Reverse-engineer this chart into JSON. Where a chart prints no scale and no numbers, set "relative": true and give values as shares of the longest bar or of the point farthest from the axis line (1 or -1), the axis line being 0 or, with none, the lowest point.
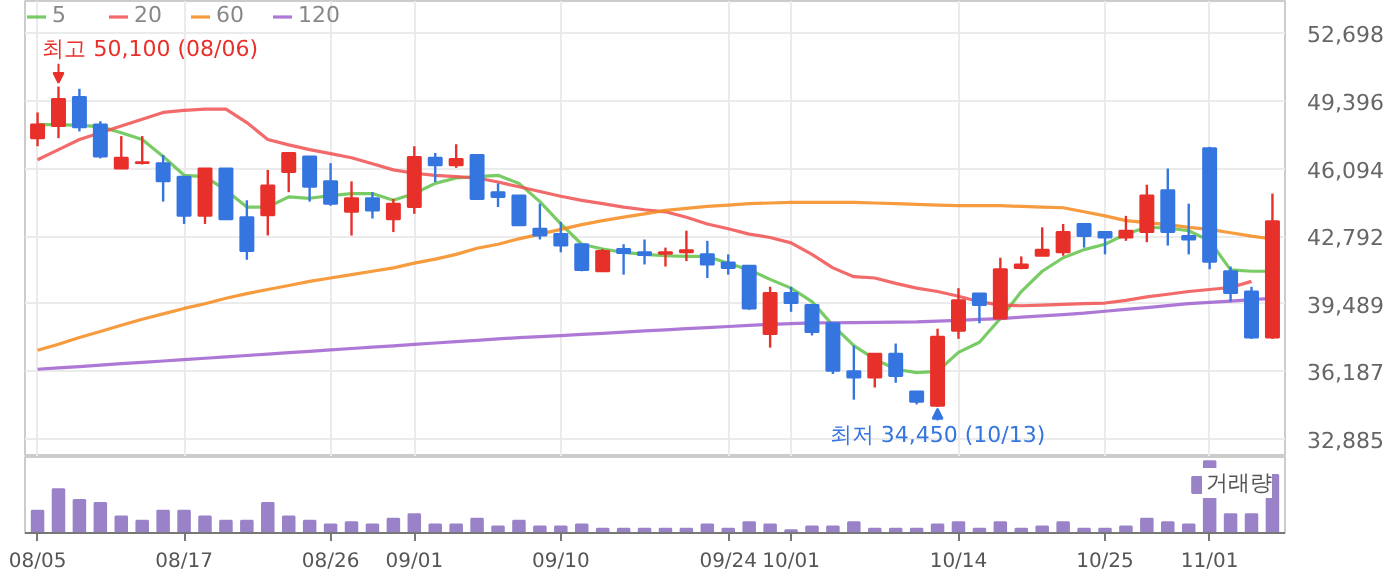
{
  "chart_data": [
    {
      "type": "candlestick",
      "categories": [
        null,
        null,
        null,
        null,
        null,
        null,
        null,
        null,
        null,
        null,
        null,
        null,
        null,
        null,
        null,
        null,
        null,
        null,
        null,
        null,
        null,
        null,
        null,
        null,
        null,
        null,
        null,
        null,
        null,
        null,
        null,
        null,
        null,
        null,
        null,
        null,
        null,
        null,
        null,
        null,
        null,
        null,
        null,
        null,
        null,
        null,
        null,
        null,
        null,
        null,
        null,
        null,
        null,
        null,
        null,
        null,
        null,
        null,
        null,
        null
      ],
      "ohlc": [
        [
          47580,
          48835,
          47184,
          48240
        ],
        [
          48174,
          50100,
          47580,
          49495
        ],
        [
          49594,
          49990,
          47910,
          48108
        ],
        [
          48240,
          48405,
          46590,
          46688
        ],
        [
          46094,
          47679,
          46094,
          46622
        ],
        [
          46360,
          47679,
          46292,
          46400
        ],
        [
          46358,
          46754,
          44476,
          45467
        ],
        [
          45698,
          45698,
          43387,
          43783
        ],
        [
          43783,
          46094,
          43387,
          46094
        ],
        [
          46094,
          46094,
          43618,
          43618
        ],
        [
          43717,
          44542,
          41637,
          42066
        ],
        [
          43816,
          46028,
          42825,
          45268
        ],
        [
          45929,
          46853,
          44938,
          46853
        ],
        [
          46688,
          46688,
          44476,
          45202
        ],
        [
          45467,
          46358,
          44278,
          44377
        ],
        [
          43981,
          45467,
          42820,
          44641
        ],
        [
          44641,
          44938,
          43651,
          44047
        ],
        [
          43618,
          44608,
          42990,
          44377
        ],
        [
          44212,
          47184,
          43882,
          46655
        ],
        [
          46622,
          46853,
          45434,
          46259
        ],
        [
          46259,
          47283,
          46127,
          46556
        ],
        [
          46754,
          46754,
          44608,
          44608
        ],
        [
          44938,
          45368,
          44212,
          44707
        ],
        [
          44773,
          44773,
          43321,
          43321
        ],
        [
          43156,
          44377,
          42627,
          42825
        ],
        [
          42891,
          43486,
          41999,
          42330
        ],
        [
          42396,
          42396,
          41075,
          41141
        ],
        [
          41075,
          42165,
          41075,
          42066
        ],
        [
          42165,
          42396,
          40910,
          41967
        ],
        [
          42000,
          42627,
          41406,
          41868
        ],
        [
          41934,
          42231,
          41306,
          42000
        ],
        [
          42000,
          43056,
          41571,
          42099
        ],
        [
          41901,
          42561,
          40745,
          41405
        ],
        [
          41504,
          41901,
          40910,
          41240
        ],
        [
          41339,
          41339,
          39193,
          39259
        ],
        [
          38005,
          40316,
          37344,
          40019
        ],
        [
          40019,
          40316,
          39094,
          39523
        ],
        [
          39424,
          39424,
          37939,
          38103
        ],
        [
          38532,
          38532,
          36055,
          36220
        ],
        [
          36187,
          37443,
          34801,
          35890
        ],
        [
          35890,
          37047,
          35395,
          37047
        ],
        [
          37047,
          37542,
          35626,
          35956
        ],
        [
          35197,
          35197,
          34570,
          34702
        ],
        [
          34500,
          38268,
          34450,
          37872
        ],
        [
          38169,
          40250,
          37773,
          39655
        ],
        [
          39985,
          39985,
          38532,
          39424
        ],
        [
          38763,
          41736,
          38763,
          41174
        ],
        [
          41240,
          41802,
          41174,
          41405
        ],
        [
          41835,
          43222,
          41835,
          42132
        ],
        [
          42000,
          43387,
          41835,
          42990
        ],
        [
          43387,
          43387,
          42231,
          42792
        ],
        [
          42990,
          42990,
          41901,
          42726
        ],
        [
          42726,
          43783,
          42561,
          43056
        ],
        [
          42990,
          45301,
          42495,
          44773
        ],
        [
          45037,
          46094,
          42330,
          42990
        ],
        [
          42792,
          44377,
          41901,
          42627
        ],
        [
          47085,
          47151,
          41174,
          41538
        ],
        [
          41075,
          41306,
          39589,
          40019
        ],
        [
          40085,
          40316,
          37773,
          37840
        ],
        [
          37840,
          44872,
          37773,
          43519
        ]
      ],
      "colors": [
        "#e8302a",
        "#e8302a",
        "#3575e0",
        "#3575e0",
        "#e8302a",
        "#e8302a",
        "#3575e0",
        "#3575e0",
        "#e8302a",
        "#3575e0",
        "#3575e0",
        "#e8302a",
        "#e8302a",
        "#3575e0",
        "#3575e0",
        "#e8302a",
        "#3575e0",
        "#e8302a",
        "#e8302a",
        "#3575e0",
        "#e8302a",
        "#3575e0",
        "#3575e0",
        "#3575e0",
        "#3575e0",
        "#3575e0",
        "#3575e0",
        "#e8302a",
        "#3575e0",
        "#3575e0",
        "#e8302a",
        "#e8302a",
        "#3575e0",
        "#3575e0",
        "#3575e0",
        "#e8302a",
        "#3575e0",
        "#3575e0",
        "#3575e0",
        "#3575e0",
        "#e8302a",
        "#3575e0",
        "#3575e0",
        "#e8302a",
        "#e8302a",
        "#3575e0",
        "#e8302a",
        "#e8302a",
        "#e8302a",
        "#e8302a",
        "#3575e0",
        "#3575e0",
        "#e8302a",
        "#e8302a",
        "#3575e0",
        "#3575e0",
        "#3575e0",
        "#3575e0",
        "#3575e0",
        "#e8302a"
      ],
      "series": [
        {
          "name": "5",
          "type": "line",
          "color": "#62c34a",
          "values": [
            48240,
            48240,
            48207,
            48141,
            47844,
            47514,
            46688,
            45764,
            45698,
            45038,
            44212,
            44212,
            44707,
            44641,
            44773,
            44872,
            44872,
            44542,
            44872,
            45368,
            45632,
            45698,
            45764,
            45368,
            44476,
            43386,
            42396,
            42165,
            41999,
            41900,
            41834,
            41801,
            41801,
            41471,
            41141,
            40679,
            40250,
            39589,
            38433,
            37443,
            36782,
            36287,
            36122,
            36188,
            37113,
            37608,
            38764,
            40085,
            41075,
            41735,
            42132,
            42396,
            42891,
            43221,
            43188,
            43056,
            42561,
            41141,
            41075,
            41075
          ]
        },
        {
          "name": "20",
          "type": "line",
          "color": "#f05050",
          "values": [
            46523,
            47019,
            47514,
            47844,
            48174,
            48504,
            48835,
            48934,
            49000,
            49000,
            48339,
            47514,
            47250,
            47019,
            46820,
            46622,
            46325,
            46028,
            45863,
            45764,
            45698,
            45632,
            45434,
            45203,
            44971,
            44740,
            44542,
            44377,
            44212,
            44080,
            43981,
            43717,
            43386,
            43155,
            42891,
            42726,
            42462,
            41900,
            41240,
            40811,
            40745,
            40481,
            40250,
            40085,
            39853,
            39589,
            39424,
            39391,
            39424,
            39457,
            39490,
            39523,
            39655,
            39820,
            39952,
            40085,
            40184,
            40283,
            40580,
            null
          ]
        },
        {
          "name": "60",
          "type": "line",
          "color": "#f48a1c",
          "values": [
            37212,
            37509,
            37839,
            38136,
            38433,
            38731,
            38995,
            39259,
            39490,
            39754,
            39985,
            40184,
            40382,
            40580,
            40745,
            40910,
            41075,
            41240,
            41471,
            41669,
            41900,
            42198,
            42396,
            42660,
            42891,
            43122,
            43354,
            43552,
            43717,
            43882,
            44047,
            44146,
            44245,
            44311,
            44377,
            44410,
            44443,
            44443,
            44443,
            44443,
            44410,
            44377,
            44344,
            44311,
            44278,
            44278,
            44278,
            44245,
            44212,
            44179,
            43981,
            43783,
            43552,
            43452,
            43354,
            43221,
            43122,
            42957,
            42792,
            42660
          ]
        },
        {
          "name": "120",
          "type": "line",
          "color": "#a060d0",
          "values": [
            36287,
            36350,
            36420,
            36490,
            36560,
            36625,
            36690,
            36760,
            36825,
            36895,
            36960,
            37030,
            37095,
            37160,
            37230,
            37300,
            37365,
            37430,
            37500,
            37570,
            37635,
            37700,
            37773,
            37830,
            37880,
            37935,
            37990,
            38045,
            38103,
            38160,
            38215,
            38270,
            38320,
            38375,
            38433,
            38480,
            38520,
            38550,
            38560,
            38570,
            38580,
            38590,
            38598,
            38640,
            38680,
            38720,
            38764,
            38830,
            38895,
            38960,
            39028,
            39120,
            39210,
            39300,
            39400,
            39490,
            39555,
            39620,
            39690,
            39754
          ]
        }
      ],
      "ylim": [
        32000,
        54280
      ],
      "yticks": [
        {
          "value": 32885,
          "label": "32,885"
        },
        {
          "value": 36187,
          "label": "36,187"
        },
        {
          "value": 39489,
          "label": "39,489"
        },
        {
          "value": 42792,
          "label": "42,792"
        },
        {
          "value": 46094,
          "label": "46,094"
        },
        {
          "value": 49396,
          "label": "49,396"
        },
        {
          "value": 52698,
          "label": "52,698"
        }
      ],
      "annotations": [
        "최고 50,100 (08/06)",
        "최저 34,450 (10/13)"
      ],
      "grid": true,
      "legend": "top left",
      "tick_labels": "y"
    },
    {
      "type": "bar",
      "relative": true,
      "categories": [
        "08/05",
        null,
        null,
        null,
        null,
        null,
        null,
        "08/17",
        null,
        null,
        null,
        null,
        null,
        null,
        "08/26",
        null,
        null,
        null,
        "09/01",
        null,
        null,
        null,
        null,
        null,
        null,
        "09/10",
        null,
        null,
        null,
        null,
        null,
        null,
        null,
        "09/24",
        null,
        null,
        "10/01",
        null,
        null,
        null,
        null,
        null,
        null,
        null,
        "10/14",
        null,
        null,
        null,
        null,
        null,
        null,
        "10/25",
        null,
        null,
        null,
        null,
        "11/01",
        null,
        null,
        null
      ],
      "series": [
        {
          "name": "거래량",
          "color": "#9a82c8",
          "values": [
            0.31,
            0.61,
            0.46,
            0.42,
            0.23,
            0.17,
            0.31,
            0.31,
            0.23,
            0.17,
            0.17,
            0.42,
            0.23,
            0.17,
            0.12,
            0.15,
            0.12,
            0.2,
            0.26,
            0.12,
            0.12,
            0.2,
            0.09,
            0.17,
            0.09,
            0.09,
            0.12,
            0.06,
            0.06,
            0.06,
            0.06,
            0.06,
            0.12,
            0.06,
            0.15,
            0.12,
            0.04,
            0.09,
            0.09,
            0.15,
            0.06,
            0.06,
            0.06,
            0.12,
            0.15,
            0.06,
            0.15,
            0.06,
            0.09,
            0.15,
            0.06,
            0.06,
            0.09,
            0.2,
            0.15,
            0.12,
            1,
            0.26,
            0.26,
            0.81
          ]
        }
      ],
      "legend": "top right",
      "tick_labels": "x",
      "grid": false
    }
  ]
}
